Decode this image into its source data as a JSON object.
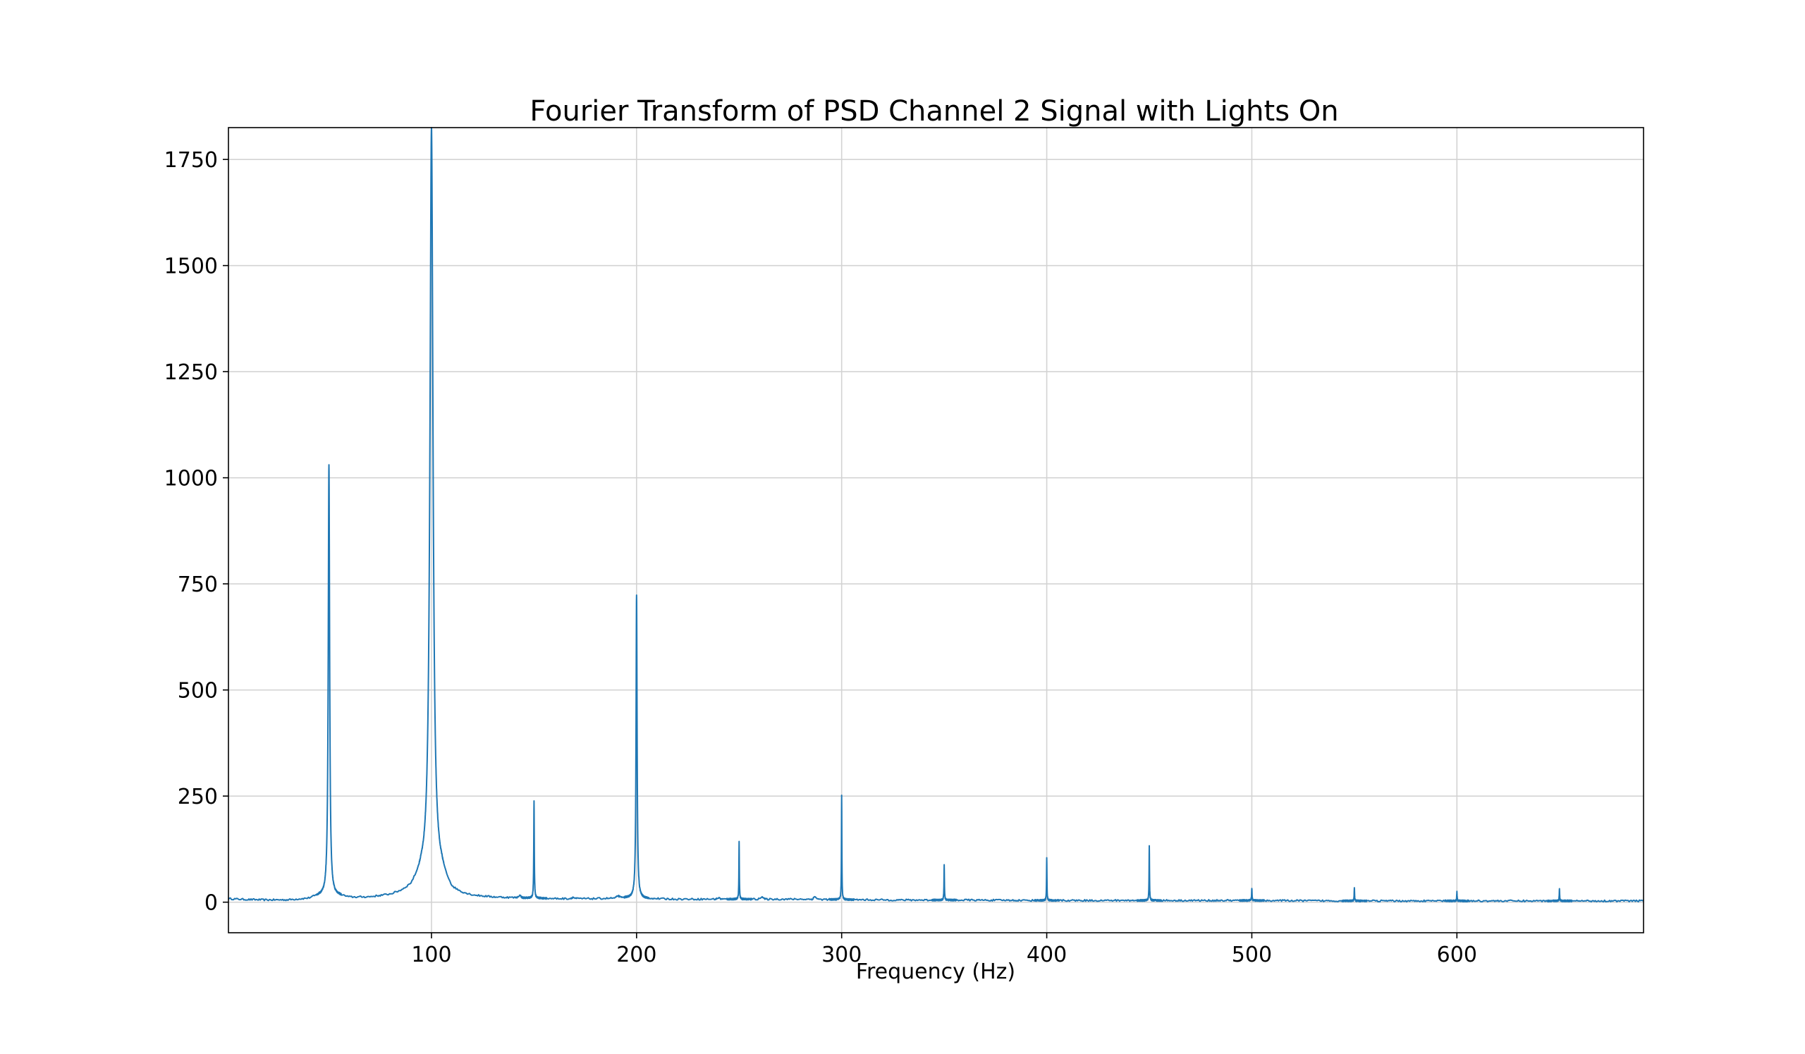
{
  "chart_data": {
    "type": "line",
    "title": "Fourier Transform of PSD Channel 2 Signal with Lights On",
    "xlabel": "Frequency (Hz)",
    "ylabel": "",
    "xlim": [
      1,
      691
    ],
    "ylim": [
      -72,
      1825
    ],
    "xticks": [
      100,
      200,
      300,
      400,
      500,
      600
    ],
    "yticks": [
      0,
      250,
      500,
      750,
      1000,
      1250,
      1500,
      1750
    ],
    "grid": true,
    "legend": "none",
    "series": [
      {
        "color": "#1f77b4",
        "baseline": [
          [
            1,
            8
          ],
          [
            10,
            6
          ],
          [
            20,
            5
          ],
          [
            30,
            5
          ],
          [
            40,
            8
          ],
          [
            45,
            14
          ],
          [
            55,
            14
          ],
          [
            60,
            10
          ],
          [
            70,
            11
          ],
          [
            80,
            16
          ],
          [
            85,
            22
          ],
          [
            90,
            32
          ],
          [
            95,
            60
          ],
          [
            105,
            60
          ],
          [
            110,
            25
          ],
          [
            115,
            18
          ],
          [
            120,
            14
          ],
          [
            130,
            11
          ],
          [
            140,
            10
          ],
          [
            150,
            9
          ],
          [
            160,
            8
          ],
          [
            170,
            8
          ],
          [
            180,
            8
          ],
          [
            190,
            9
          ],
          [
            195,
            10
          ],
          [
            205,
            8
          ],
          [
            220,
            7
          ],
          [
            240,
            7
          ],
          [
            260,
            7
          ],
          [
            280,
            7
          ],
          [
            300,
            6
          ],
          [
            330,
            5
          ],
          [
            360,
            5
          ],
          [
            400,
            4
          ],
          [
            450,
            4
          ],
          [
            500,
            4
          ],
          [
            550,
            3
          ],
          [
            600,
            3
          ],
          [
            650,
            3
          ],
          [
            691,
            3
          ]
        ],
        "peaks": [
          {
            "x": 50,
            "y": 1030,
            "width": 0.4
          },
          {
            "x": 100,
            "y": 1825,
            "width": 0.9
          },
          {
            "x": 150,
            "y": 238,
            "width": 0.15
          },
          {
            "x": 200,
            "y": 725,
            "width": 0.3
          },
          {
            "x": 250,
            "y": 143,
            "width": 0.12
          },
          {
            "x": 300,
            "y": 253,
            "width": 0.12
          },
          {
            "x": 350,
            "y": 88,
            "width": 0.12
          },
          {
            "x": 400,
            "y": 103,
            "width": 0.12
          },
          {
            "x": 450,
            "y": 133,
            "width": 0.12
          },
          {
            "x": 500,
            "y": 34,
            "width": 0.12
          },
          {
            "x": 550,
            "y": 34,
            "width": 0.12
          },
          {
            "x": 600,
            "y": 24,
            "width": 0.12
          },
          {
            "x": 650,
            "y": 32,
            "width": 0.12
          }
        ],
        "bumps": [
          {
            "x": 143,
            "y": 15
          },
          {
            "x": 169,
            "y": 11
          },
          {
            "x": 191,
            "y": 14
          },
          {
            "x": 240,
            "y": 10
          },
          {
            "x": 261,
            "y": 13
          },
          {
            "x": 287,
            "y": 13
          }
        ]
      }
    ]
  }
}
